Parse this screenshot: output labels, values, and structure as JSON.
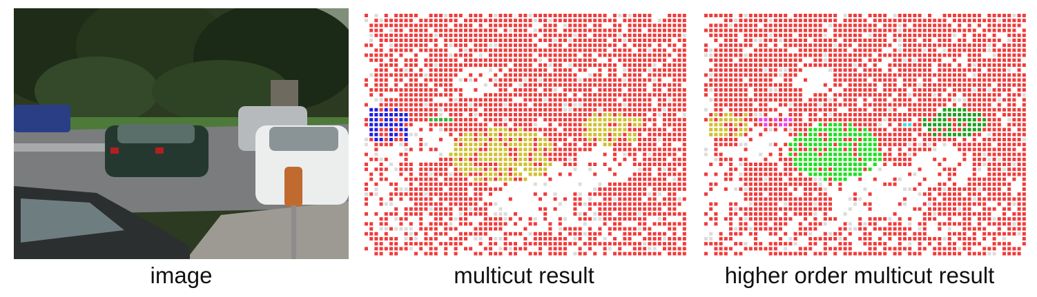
{
  "figure": {
    "panels": [
      {
        "id": "image",
        "caption": "image"
      },
      {
        "id": "multicut",
        "caption": "multicut result"
      },
      {
        "id": "higher-order-multicut",
        "caption": "higher order multicut result"
      }
    ],
    "segment_colors": {
      "background": "#f03c3c",
      "unassigned": "#dcdcdc",
      "multicut": {
        "left-car": "#2020e0",
        "small-strip": "#36b036",
        "center-car": "#d0c030",
        "right-car": "#d0c030"
      },
      "higher-order-multicut": {
        "left-car": "#d0c030",
        "small-strip": "#f040f0",
        "center-car": "#20e020",
        "right-car": "#20a020",
        "tiny-strip": "#40e0e0"
      }
    }
  }
}
